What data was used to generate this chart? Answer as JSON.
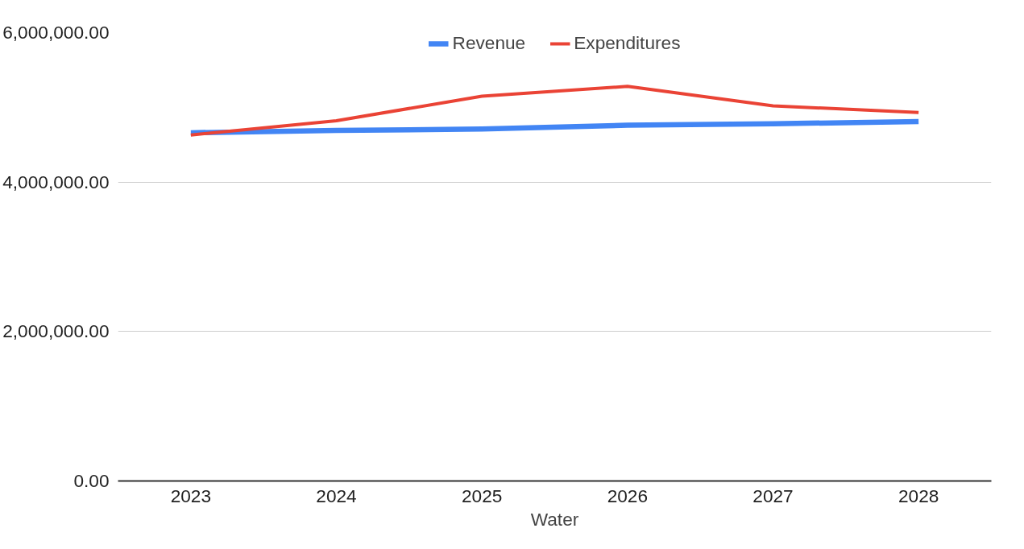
{
  "chart_data": {
    "type": "line",
    "xlabel": "Water",
    "categories": [
      "2023",
      "2024",
      "2025",
      "2026",
      "2027",
      "2028"
    ],
    "series": [
      {
        "name": "Revenue",
        "color": "#4285f4",
        "values": [
          4660000,
          4690000,
          4710000,
          4760000,
          4780000,
          4810000
        ]
      },
      {
        "name": "Expenditures",
        "color": "#ea4335",
        "values": [
          4630000,
          4820000,
          5150000,
          5280000,
          5020000,
          4930000
        ]
      }
    ],
    "ylim": [
      0,
      6000000
    ],
    "yticks": [
      {
        "value": 0,
        "label": "0.00"
      },
      {
        "value": 2000000,
        "label": "2,000,000.00"
      },
      {
        "value": 4000000,
        "label": "4,000,000.00"
      },
      {
        "value": 6000000,
        "label": "6,000,000.00"
      }
    ],
    "grid": "y",
    "legend": "top",
    "marker": "none",
    "line_style": "solid"
  }
}
